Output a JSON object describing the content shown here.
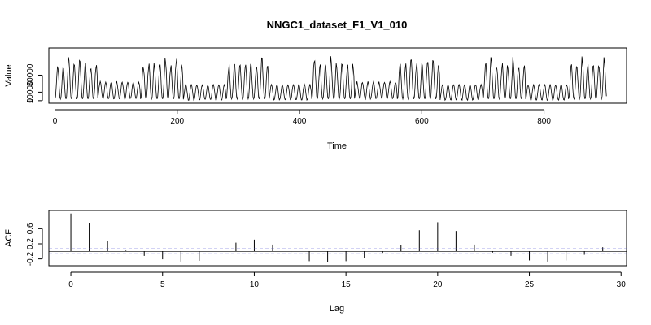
{
  "chart_data": [
    {
      "type": "line",
      "title": "NNGC1_dataset_F1_V1_010",
      "xlabel": "Time",
      "ylabel": "Value",
      "xlim": [
        -10,
        935
      ],
      "ylim": [
        -3000,
        62000
      ],
      "x_ticks": [
        0,
        200,
        400,
        600,
        800
      ],
      "y_ticks": [
        0,
        10000,
        30000
      ],
      "y_tick_labels": [
        "0",
        "10000",
        "30000"
      ],
      "n": 903,
      "weeks": [
        [
          1,
          1,
          2,
          1,
          2,
          1,
          1,
          0
        ],
        [
          0.5,
          0,
          0,
          0,
          0,
          0,
          0,
          0
        ],
        [
          0,
          1,
          1,
          1,
          2,
          1,
          2,
          1
        ],
        [
          0,
          0,
          0,
          0,
          0,
          0,
          0,
          0
        ],
        [
          1,
          1,
          1,
          1,
          1,
          1,
          2,
          1
        ],
        [
          0,
          0,
          0,
          0,
          0,
          0,
          0,
          0
        ],
        [
          2,
          1,
          1,
          2,
          1,
          1,
          1,
          1
        ],
        [
          1,
          0,
          0,
          0,
          0,
          0,
          0,
          0
        ],
        [
          1,
          1,
          2,
          1,
          1,
          2,
          2,
          1
        ],
        [
          0,
          0,
          0,
          0,
          0,
          0,
          0,
          0
        ],
        [
          1,
          2,
          1,
          1,
          1,
          2,
          1,
          1
        ],
        [
          0,
          0,
          0,
          0,
          0,
          0,
          0,
          0
        ],
        [
          1,
          1,
          2,
          1,
          1,
          1,
          2,
          1
        ]
      ],
      "week_color": "#000000"
    },
    {
      "type": "bar",
      "title": "",
      "xlabel": "Lag",
      "ylabel": "ACF",
      "xlim": [
        -1.2,
        30.3
      ],
      "ylim": [
        -0.38,
        1.08
      ],
      "x_ticks": [
        0,
        5,
        10,
        15,
        20,
        25,
        30
      ],
      "y_ticks": [
        -0.2,
        0.2,
        0.6
      ],
      "y_tick_labels": [
        "-0.2",
        "0.2",
        "0.6"
      ],
      "lags": [
        0,
        1,
        2,
        3,
        4,
        5,
        6,
        7,
        8,
        9,
        10,
        11,
        12,
        13,
        14,
        15,
        16,
        17,
        18,
        19,
        20,
        21,
        22,
        23,
        24,
        25,
        26,
        27,
        28,
        29
      ],
      "values": [
        1.0,
        0.75,
        0.28,
        0.02,
        -0.12,
        -0.21,
        -0.27,
        -0.25,
        0.0,
        0.23,
        0.31,
        0.18,
        -0.06,
        -0.26,
        -0.28,
        -0.26,
        -0.18,
        -0.04,
        0.17,
        0.56,
        0.77,
        0.54,
        0.18,
        -0.03,
        -0.12,
        -0.24,
        -0.27,
        -0.24,
        -0.09,
        0.11
      ],
      "ci": 0.0653,
      "ci_color": "#4a4ad6"
    }
  ]
}
